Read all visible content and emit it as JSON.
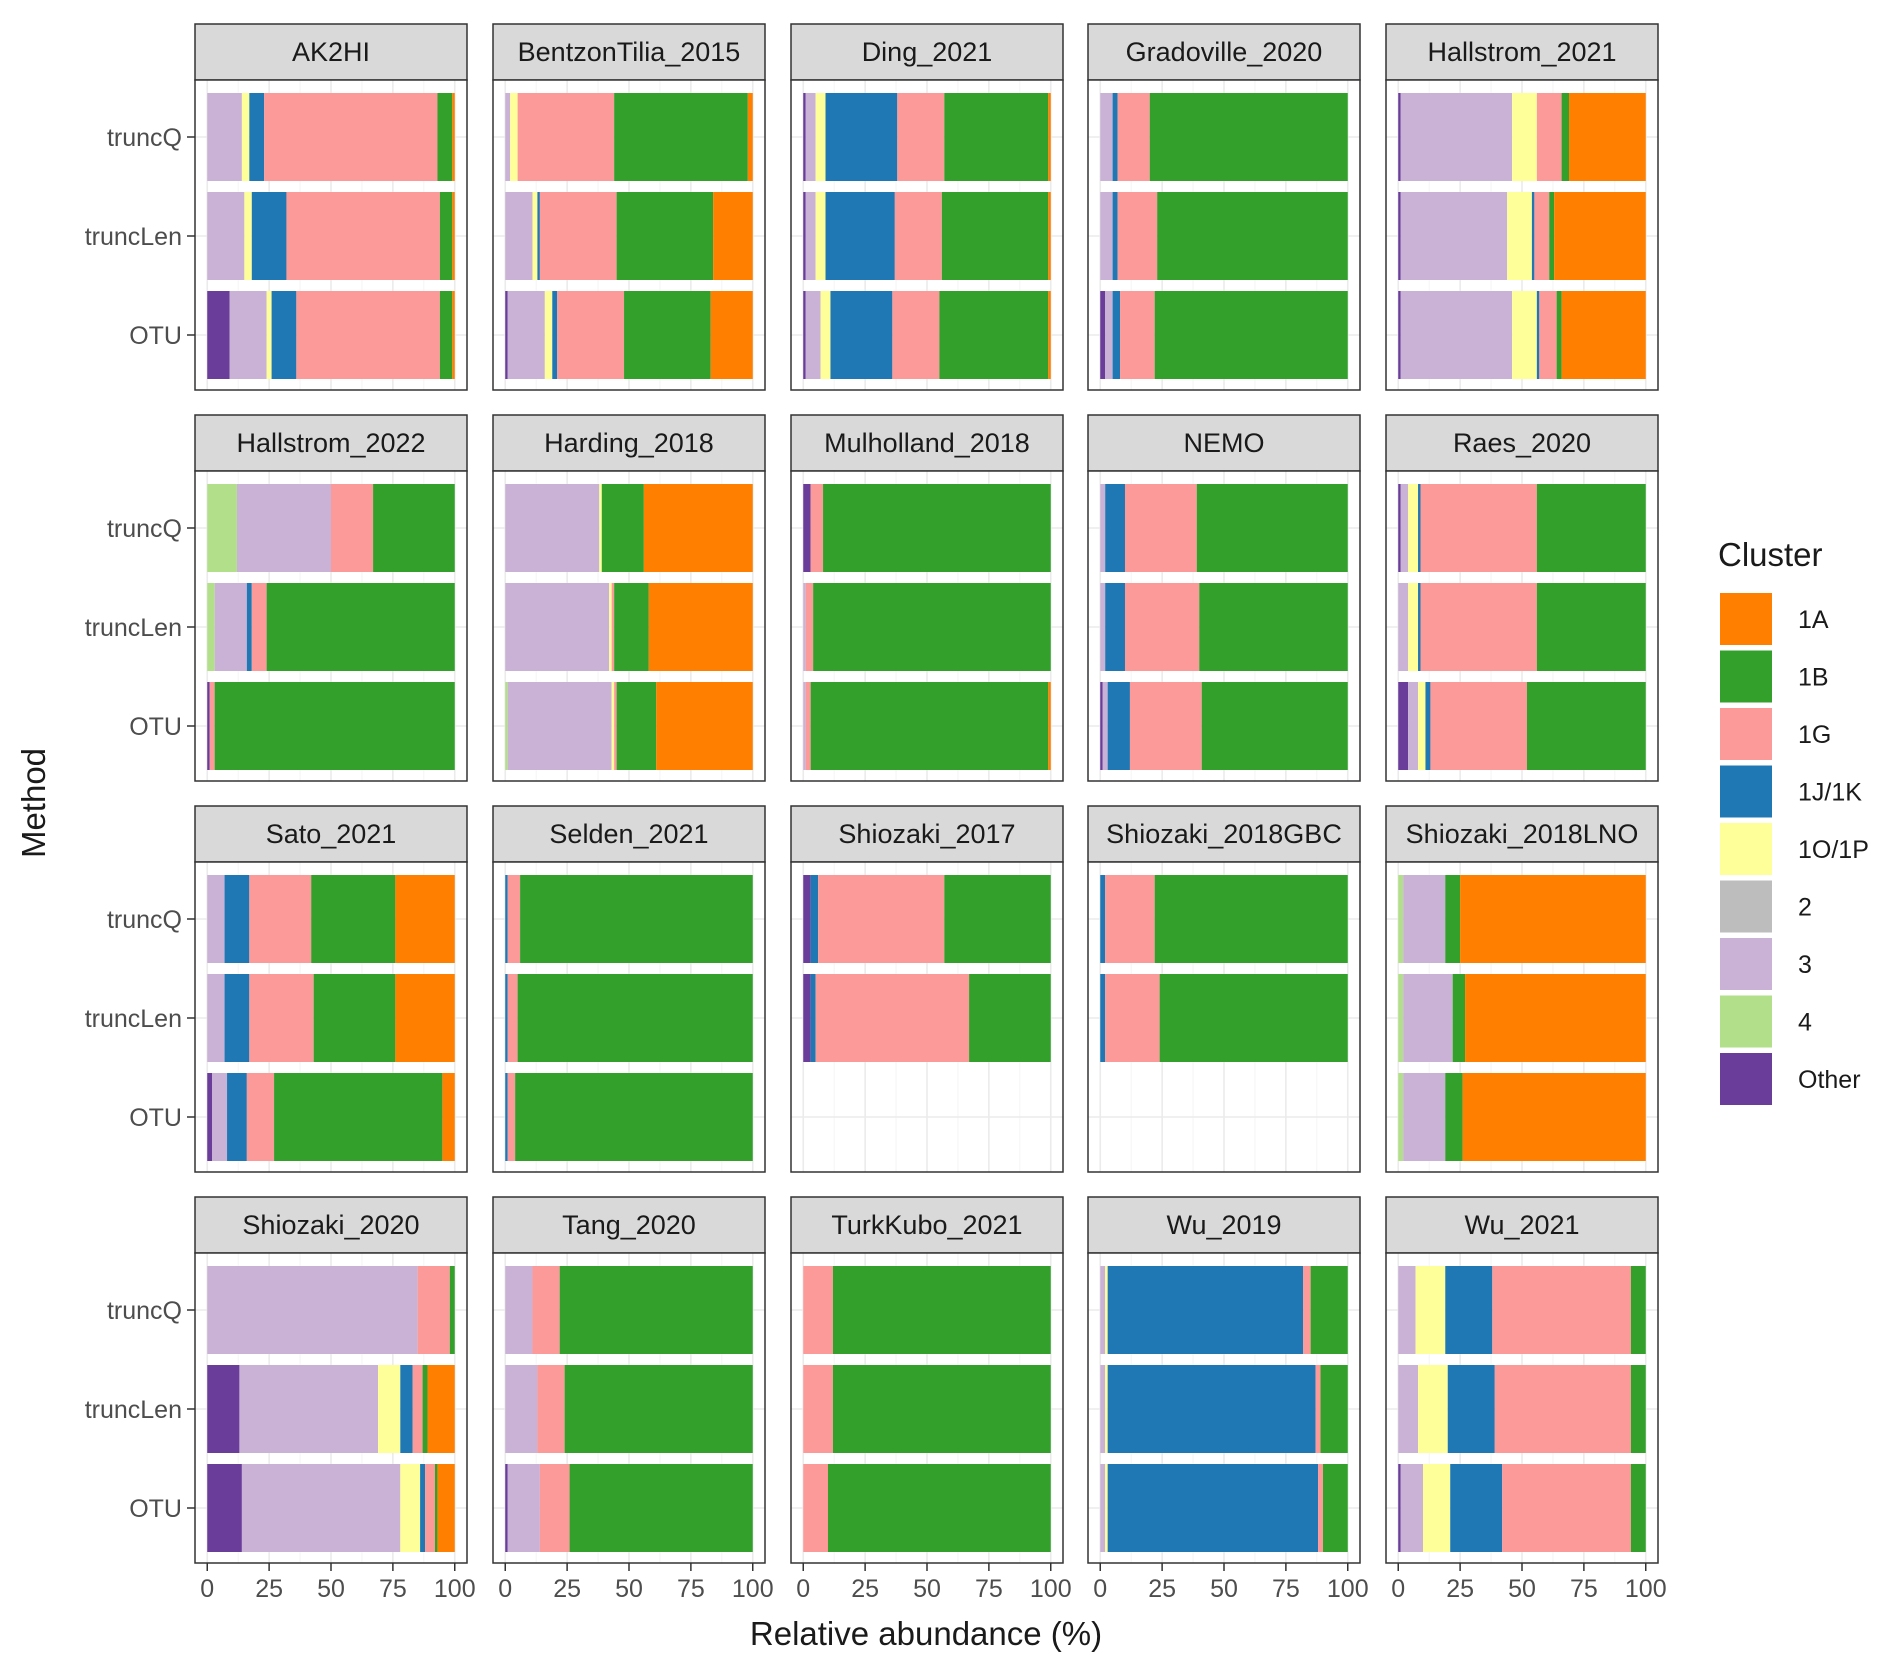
{
  "chart_data": {
    "type": "bar",
    "orientation": "horizontal",
    "stacked": true,
    "facet_rows": 4,
    "facet_cols": 5,
    "xlabel": "Relative abundance (%)",
    "ylabel": "Method",
    "xlim": [
      0,
      100
    ],
    "xticks": [
      "0",
      "25",
      "50",
      "75",
      "100"
    ],
    "categories": [
      "truncQ",
      "truncLen",
      "OTU"
    ],
    "legend": {
      "title": "Cluster",
      "position": "right",
      "entries": [
        {
          "label": "1A",
          "color": "#ff7f00"
        },
        {
          "label": "1B",
          "color": "#33a02c"
        },
        {
          "label": "1G",
          "color": "#fb9a99"
        },
        {
          "label": "1J/1K",
          "color": "#1f78b4"
        },
        {
          "label": "1O/1P",
          "color": "#ffff99"
        },
        {
          "label": "2",
          "color": "#bdbdbd"
        },
        {
          "label": "3",
          "color": "#cab2d6"
        },
        {
          "label": "4",
          "color": "#b2df8a"
        },
        {
          "label": "Other",
          "color": "#6a3d9a"
        }
      ]
    },
    "stack_order": [
      "Other",
      "4",
      "3",
      "2",
      "1O/1P",
      "1J/1K",
      "1G",
      "1B",
      "1A"
    ],
    "panels": [
      {
        "title": "AK2HI",
        "bars": {
          "truncQ": {
            "Other": 0,
            "4": 0,
            "3": 14,
            "2": 0,
            "1O/1P": 3,
            "1J/1K": 6,
            "1G": 70,
            "1B": 6,
            "1A": 1
          },
          "truncLen": {
            "Other": 0,
            "4": 0,
            "3": 15,
            "2": 0,
            "1O/1P": 3,
            "1J/1K": 14,
            "1G": 62,
            "1B": 5,
            "1A": 1
          },
          "OTU": {
            "Other": 9,
            "4": 0,
            "3": 15,
            "2": 0,
            "1O/1P": 2,
            "1J/1K": 10,
            "1G": 58,
            "1B": 5,
            "1A": 1
          }
        }
      },
      {
        "title": "BentzonTilia_2015",
        "bars": {
          "truncQ": {
            "Other": 0,
            "4": 0,
            "3": 2,
            "2": 0,
            "1O/1P": 3,
            "1J/1K": 0,
            "1G": 39,
            "1B": 54,
            "1A": 2
          },
          "truncLen": {
            "Other": 0,
            "4": 0,
            "3": 11,
            "2": 0,
            "1O/1P": 2,
            "1J/1K": 1,
            "1G": 31,
            "1B": 39,
            "1A": 16
          },
          "OTU": {
            "Other": 1,
            "4": 0,
            "3": 15,
            "2": 0,
            "1O/1P": 3,
            "1J/1K": 2,
            "1G": 27,
            "1B": 35,
            "1A": 17
          }
        }
      },
      {
        "title": "Ding_2021",
        "bars": {
          "truncQ": {
            "Other": 1,
            "4": 0,
            "3": 4,
            "2": 0,
            "1O/1P": 4,
            "1J/1K": 29,
            "1G": 19,
            "1B": 42,
            "1A": 1
          },
          "truncLen": {
            "Other": 1,
            "4": 0,
            "3": 4,
            "2": 0,
            "1O/1P": 4,
            "1J/1K": 28,
            "1G": 19,
            "1B": 43,
            "1A": 1
          },
          "OTU": {
            "Other": 1,
            "4": 0,
            "3": 6,
            "2": 0,
            "1O/1P": 4,
            "1J/1K": 25,
            "1G": 19,
            "1B": 44,
            "1A": 1
          }
        }
      },
      {
        "title": "Gradoville_2020",
        "bars": {
          "truncQ": {
            "Other": 0,
            "4": 0,
            "3": 5,
            "2": 0,
            "1O/1P": 0,
            "1J/1K": 2,
            "1G": 13,
            "1B": 80,
            "1A": 0
          },
          "truncLen": {
            "Other": 0,
            "4": 0,
            "3": 5,
            "2": 0,
            "1O/1P": 0,
            "1J/1K": 2,
            "1G": 16,
            "1B": 77,
            "1A": 0
          },
          "OTU": {
            "Other": 2,
            "4": 0,
            "3": 3,
            "2": 0,
            "1O/1P": 0,
            "1J/1K": 3,
            "1G": 14,
            "1B": 78,
            "1A": 0
          }
        }
      },
      {
        "title": "Hallstrom_2021",
        "bars": {
          "truncQ": {
            "Other": 1,
            "4": 0,
            "3": 45,
            "2": 0,
            "1O/1P": 10,
            "1J/1K": 0,
            "1G": 10,
            "1B": 3,
            "1A": 31
          },
          "truncLen": {
            "Other": 1,
            "4": 0,
            "3": 43,
            "2": 0,
            "1O/1P": 10,
            "1J/1K": 1,
            "1G": 6,
            "1B": 2,
            "1A": 37
          },
          "OTU": {
            "Other": 1,
            "4": 0,
            "3": 45,
            "2": 0,
            "1O/1P": 10,
            "1J/1K": 1,
            "1G": 7,
            "1B": 2,
            "1A": 34
          }
        }
      },
      {
        "title": "Hallstrom_2022",
        "bars": {
          "truncQ": {
            "Other": 0,
            "4": 12,
            "3": 38,
            "2": 0,
            "1O/1P": 0,
            "1J/1K": 0,
            "1G": 17,
            "1B": 33,
            "1A": 0
          },
          "truncLen": {
            "Other": 0,
            "4": 3,
            "3": 13,
            "2": 0,
            "1O/1P": 0,
            "1J/1K": 2,
            "1G": 6,
            "1B": 76,
            "1A": 0
          },
          "OTU": {
            "Other": 1,
            "4": 0,
            "3": 0,
            "2": 0,
            "1O/1P": 0,
            "1J/1K": 0,
            "1G": 2,
            "1B": 97,
            "1A": 0
          }
        }
      },
      {
        "title": "Harding_2018",
        "bars": {
          "truncQ": {
            "Other": 0,
            "4": 0,
            "3": 38,
            "2": 0,
            "1O/1P": 1,
            "1J/1K": 0,
            "1G": 0,
            "1B": 17,
            "1A": 44
          },
          "truncLen": {
            "Other": 0,
            "4": 0,
            "3": 42,
            "2": 0,
            "1O/1P": 1,
            "1J/1K": 0,
            "1G": 1,
            "1B": 14,
            "1A": 42
          },
          "OTU": {
            "Other": 0,
            "4": 1,
            "3": 42,
            "2": 0,
            "1O/1P": 1,
            "1J/1K": 0,
            "1G": 1,
            "1B": 16,
            "1A": 39
          }
        }
      },
      {
        "title": "Mulholland_2018",
        "bars": {
          "truncQ": {
            "Other": 3,
            "4": 0,
            "3": 0,
            "2": 0,
            "1O/1P": 0,
            "1J/1K": 0,
            "1G": 5,
            "1B": 92,
            "1A": 0
          },
          "truncLen": {
            "Other": 0,
            "4": 0,
            "3": 1,
            "2": 0,
            "1O/1P": 0,
            "1J/1K": 0,
            "1G": 3,
            "1B": 96,
            "1A": 0
          },
          "OTU": {
            "Other": 0,
            "4": 0,
            "3": 1,
            "2": 0,
            "1O/1P": 0,
            "1J/1K": 0,
            "1G": 2,
            "1B": 96,
            "1A": 1
          }
        }
      },
      {
        "title": "NEMO",
        "bars": {
          "truncQ": {
            "Other": 0,
            "4": 0,
            "3": 2,
            "2": 0,
            "1O/1P": 0,
            "1J/1K": 8,
            "1G": 29,
            "1B": 61,
            "1A": 0
          },
          "truncLen": {
            "Other": 0,
            "4": 0,
            "3": 2,
            "2": 0,
            "1O/1P": 0,
            "1J/1K": 8,
            "1G": 30,
            "1B": 60,
            "1A": 0
          },
          "OTU": {
            "Other": 1,
            "4": 0,
            "3": 2,
            "2": 0,
            "1O/1P": 0,
            "1J/1K": 9,
            "1G": 29,
            "1B": 59,
            "1A": 0
          }
        }
      },
      {
        "title": "Raes_2020",
        "bars": {
          "truncQ": {
            "Other": 1,
            "4": 0,
            "3": 3,
            "2": 0,
            "1O/1P": 4,
            "1J/1K": 1,
            "1G": 47,
            "1B": 44,
            "1A": 0
          },
          "truncLen": {
            "Other": 0,
            "4": 0,
            "3": 4,
            "2": 0,
            "1O/1P": 4,
            "1J/1K": 1,
            "1G": 47,
            "1B": 44,
            "1A": 0
          },
          "OTU": {
            "Other": 4,
            "4": 0,
            "3": 4,
            "2": 0,
            "1O/1P": 3,
            "1J/1K": 2,
            "1G": 39,
            "1B": 48,
            "1A": 0
          }
        }
      },
      {
        "title": "Sato_2021",
        "bars": {
          "truncQ": {
            "Other": 0,
            "4": 0,
            "3": 7,
            "2": 0,
            "1O/1P": 0,
            "1J/1K": 10,
            "1G": 25,
            "1B": 34,
            "1A": 24
          },
          "truncLen": {
            "Other": 0,
            "4": 0,
            "3": 7,
            "2": 0,
            "1O/1P": 0,
            "1J/1K": 10,
            "1G": 26,
            "1B": 33,
            "1A": 24
          },
          "OTU": {
            "Other": 2,
            "4": 0,
            "3": 6,
            "2": 0,
            "1O/1P": 0,
            "1J/1K": 8,
            "1G": 11,
            "1B": 68,
            "1A": 5
          }
        }
      },
      {
        "title": "Selden_2021",
        "bars": {
          "truncQ": {
            "Other": 0,
            "4": 0,
            "3": 0,
            "2": 0,
            "1O/1P": 0,
            "1J/1K": 1,
            "1G": 5,
            "1B": 94,
            "1A": 0
          },
          "truncLen": {
            "Other": 0,
            "4": 0,
            "3": 0,
            "2": 0,
            "1O/1P": 0,
            "1J/1K": 1,
            "1G": 4,
            "1B": 95,
            "1A": 0
          },
          "OTU": {
            "Other": 0,
            "4": 0,
            "3": 0,
            "2": 0,
            "1O/1P": 0,
            "1J/1K": 1,
            "1G": 3,
            "1B": 96,
            "1A": 0
          }
        }
      },
      {
        "title": "Shiozaki_2017",
        "bars": {
          "truncQ": {
            "Other": 3,
            "4": 0,
            "3": 0,
            "2": 0,
            "1O/1P": 0,
            "1J/1K": 3,
            "1G": 51,
            "1B": 43,
            "1A": 0
          },
          "truncLen": {
            "Other": 3,
            "4": 0,
            "3": 0,
            "2": 0,
            "1O/1P": 0,
            "1J/1K": 2,
            "1G": 62,
            "1B": 33,
            "1A": 0
          }
        }
      },
      {
        "title": "Shiozaki_2018GBC",
        "bars": {
          "truncQ": {
            "Other": 0,
            "4": 0,
            "3": 0,
            "2": 0,
            "1O/1P": 0,
            "1J/1K": 2,
            "1G": 20,
            "1B": 78,
            "1A": 0
          },
          "truncLen": {
            "Other": 0,
            "4": 0,
            "3": 0,
            "2": 0,
            "1O/1P": 0,
            "1J/1K": 2,
            "1G": 22,
            "1B": 76,
            "1A": 0
          }
        }
      },
      {
        "title": "Shiozaki_2018LNO",
        "bars": {
          "truncQ": {
            "Other": 0,
            "4": 2,
            "3": 17,
            "2": 0,
            "1O/1P": 0,
            "1J/1K": 0,
            "1G": 0,
            "1B": 6,
            "1A": 75
          },
          "truncLen": {
            "Other": 0,
            "4": 2,
            "3": 20,
            "2": 0,
            "1O/1P": 0,
            "1J/1K": 0,
            "1G": 0,
            "1B": 5,
            "1A": 73
          },
          "OTU": {
            "Other": 0,
            "4": 2,
            "3": 17,
            "2": 0,
            "1O/1P": 0,
            "1J/1K": 0,
            "1G": 0,
            "1B": 7,
            "1A": 74
          }
        }
      },
      {
        "title": "Shiozaki_2020",
        "bars": {
          "truncQ": {
            "Other": 0,
            "4": 0,
            "3": 85,
            "2": 0,
            "1O/1P": 0,
            "1J/1K": 0,
            "1G": 13,
            "1B": 2,
            "1A": 0
          },
          "truncLen": {
            "Other": 13,
            "4": 0,
            "3": 56,
            "2": 0,
            "1O/1P": 9,
            "1J/1K": 5,
            "1G": 4,
            "1B": 2,
            "1A": 11
          },
          "OTU": {
            "Other": 14,
            "4": 0,
            "3": 64,
            "2": 0,
            "1O/1P": 8,
            "1J/1K": 2,
            "1G": 4,
            "1B": 1,
            "1A": 7
          }
        }
      },
      {
        "title": "Tang_2020",
        "bars": {
          "truncQ": {
            "Other": 0,
            "4": 0,
            "3": 11,
            "2": 0,
            "1O/1P": 0,
            "1J/1K": 0,
            "1G": 11,
            "1B": 78,
            "1A": 0
          },
          "truncLen": {
            "Other": 0,
            "4": 0,
            "3": 13,
            "2": 0,
            "1O/1P": 0,
            "1J/1K": 0,
            "1G": 11,
            "1B": 76,
            "1A": 0
          },
          "OTU": {
            "Other": 1,
            "4": 0,
            "3": 13,
            "2": 0,
            "1O/1P": 0,
            "1J/1K": 0,
            "1G": 12,
            "1B": 74,
            "1A": 0
          }
        }
      },
      {
        "title": "TurkKubo_2021",
        "bars": {
          "truncQ": {
            "Other": 0,
            "4": 0,
            "3": 0,
            "2": 0,
            "1O/1P": 0,
            "1J/1K": 0,
            "1G": 12,
            "1B": 88,
            "1A": 0
          },
          "truncLen": {
            "Other": 0,
            "4": 0,
            "3": 0,
            "2": 0,
            "1O/1P": 0,
            "1J/1K": 0,
            "1G": 12,
            "1B": 88,
            "1A": 0
          },
          "OTU": {
            "Other": 0,
            "4": 0,
            "3": 0,
            "2": 0,
            "1O/1P": 0,
            "1J/1K": 0,
            "1G": 10,
            "1B": 90,
            "1A": 0
          }
        }
      },
      {
        "title": "Wu_2019",
        "bars": {
          "truncQ": {
            "Other": 0,
            "4": 0,
            "3": 2,
            "2": 0,
            "1O/1P": 1,
            "1J/1K": 79,
            "1G": 3,
            "1B": 15,
            "1A": 0
          },
          "truncLen": {
            "Other": 0,
            "4": 0,
            "3": 2,
            "2": 0,
            "1O/1P": 1,
            "1J/1K": 84,
            "1G": 2,
            "1B": 11,
            "1A": 0
          },
          "OTU": {
            "Other": 0,
            "4": 0,
            "3": 2,
            "2": 0,
            "1O/1P": 1,
            "1J/1K": 85,
            "1G": 2,
            "1B": 10,
            "1A": 0
          }
        }
      },
      {
        "title": "Wu_2021",
        "bars": {
          "truncQ": {
            "Other": 0,
            "4": 0,
            "3": 7,
            "2": 0,
            "1O/1P": 12,
            "1J/1K": 19,
            "1G": 56,
            "1B": 6,
            "1A": 0
          },
          "truncLen": {
            "Other": 0,
            "4": 0,
            "3": 8,
            "2": 0,
            "1O/1P": 12,
            "1J/1K": 19,
            "1G": 55,
            "1B": 6,
            "1A": 0
          },
          "OTU": {
            "Other": 1,
            "4": 0,
            "3": 9,
            "2": 0,
            "1O/1P": 11,
            "1J/1K": 21,
            "1G": 52,
            "1B": 6,
            "1A": 0
          }
        }
      }
    ]
  }
}
